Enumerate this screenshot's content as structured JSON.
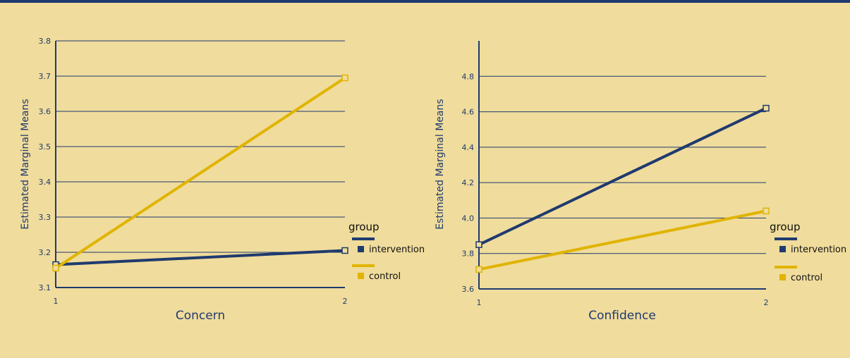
{
  "colors": {
    "background": "#f0dc9c",
    "axis": "#1f3a6e",
    "text": "#1f3a6e",
    "intervention": "#1f3a6e",
    "control": "#e0b400"
  },
  "chart_data": [
    {
      "type": "line",
      "xlabel": "Concern",
      "ylabel": "Estimated Marginal Means",
      "x": [
        1,
        2
      ],
      "x_tick_labels": [
        "1",
        "2"
      ],
      "ylim": [
        3.1,
        3.8
      ],
      "y_ticks": [
        3.1,
        3.2,
        3.3,
        3.4,
        3.5,
        3.6,
        3.7,
        3.8
      ],
      "y_tick_labels": [
        "3.1",
        "3.2",
        "3.3",
        "3.4",
        "3.5",
        "3.6",
        "3.7",
        "3.8"
      ],
      "grid": true,
      "legend": {
        "title": "group",
        "placement": "right",
        "entries": [
          "intervention",
          "control"
        ]
      },
      "series": [
        {
          "name": "intervention",
          "values": [
            3.165,
            3.205
          ]
        },
        {
          "name": "control",
          "values": [
            3.155,
            3.695
          ]
        }
      ]
    },
    {
      "type": "line",
      "xlabel": "Confidence",
      "ylabel": "Estimated Marginal Means",
      "x": [
        1,
        2
      ],
      "x_tick_labels": [
        "1",
        "2"
      ],
      "ylim": [
        3.6,
        5.0
      ],
      "y_ticks": [
        3.6,
        3.8,
        4.0,
        4.2,
        4.4,
        4.6,
        4.8
      ],
      "y_tick_labels": [
        "3.6",
        "3.8",
        "4.0",
        "4.2",
        "4.4",
        "4.6",
        "4.8"
      ],
      "grid": true,
      "legend": {
        "title": "group",
        "placement": "right",
        "entries": [
          "intervention",
          "control"
        ]
      },
      "series": [
        {
          "name": "intervention",
          "values": [
            3.85,
            4.62
          ]
        },
        {
          "name": "control",
          "values": [
            3.71,
            4.04
          ]
        }
      ]
    }
  ]
}
